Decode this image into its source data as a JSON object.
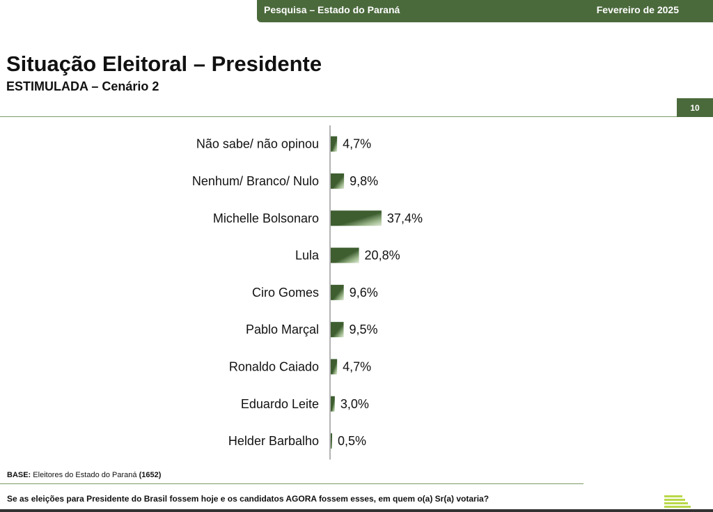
{
  "header": {
    "survey_label": "Pesquisa – Estado do Paraná",
    "date_label": "Fevereiro de 2025"
  },
  "title": "Situação Eleitoral – Presidente",
  "subtitle": "ESTIMULADA – Cenário 2",
  "page_number": "10",
  "colors": {
    "brand_green": "#4b6a3c",
    "bar_dark": "#3e5e30",
    "bar_light": "#dfe9d6",
    "logo_green": "#b9d84a"
  },
  "chart_data": {
    "type": "bar",
    "orientation": "horizontal",
    "categories": [
      "Não sabe/ não opinou",
      "Nenhum/ Branco/ Nulo",
      "Michelle Bolsonaro",
      "Lula",
      "Ciro Gomes",
      "Pablo Marçal",
      "Ronaldo Caiado",
      "Eduardo Leite",
      "Helder Barbalho"
    ],
    "values": [
      4.7,
      9.8,
      37.4,
      20.8,
      9.6,
      9.5,
      4.7,
      3.0,
      0.5
    ],
    "value_labels": [
      "4,7%",
      "9,8%",
      "37,4%",
      "20,8%",
      "9,6%",
      "9,5%",
      "4,7%",
      "3,0%",
      "0,5%"
    ],
    "unit": "%",
    "grid": false,
    "legend": false
  },
  "footer": {
    "base_prefix": "BASE:",
    "base_text": " Eleitores do Estado do Paraná ",
    "base_count": "(1652)",
    "question": "Se as eleições para Presidente do Brasil fossem hoje e os candidatos AGORA fossem esses, em quem o(a) Sr(a) votaria?"
  },
  "icons": {
    "logo": "striped-logo-icon"
  }
}
